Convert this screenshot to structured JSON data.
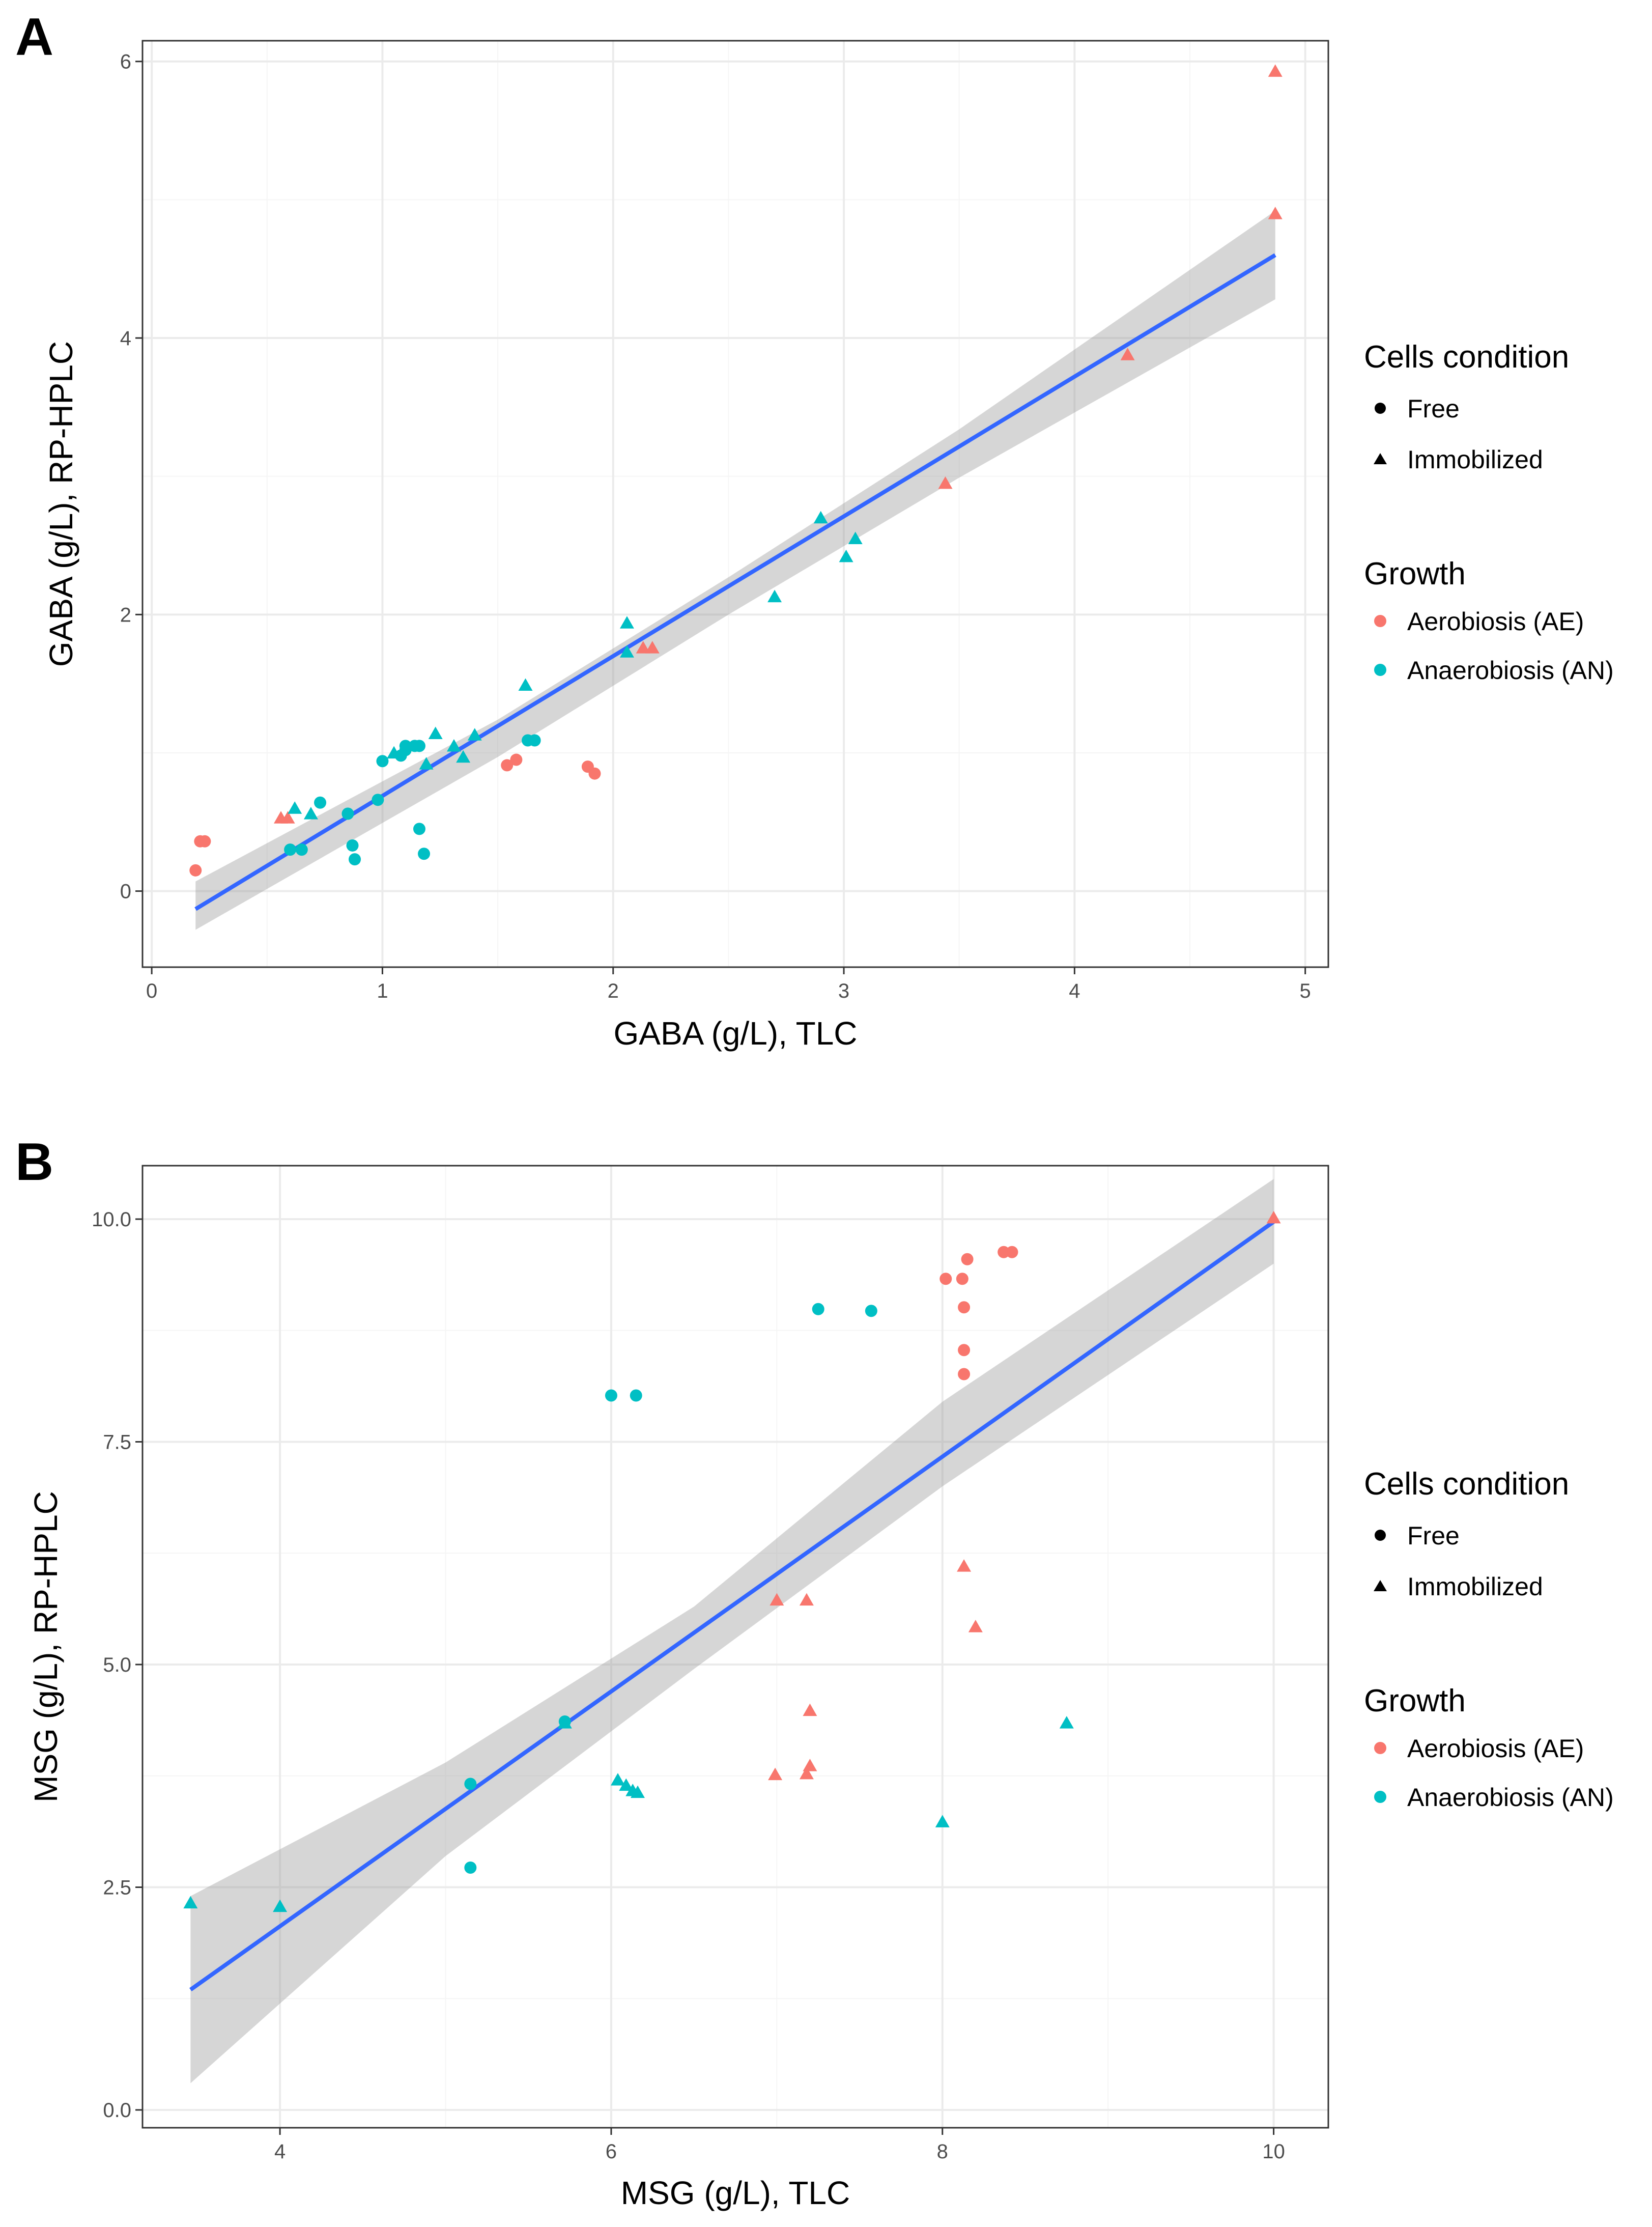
{
  "colors": {
    "aerobiosis": "#F8766D",
    "anaerobiosis": "#00BFC4",
    "fit_line": "#3366FF",
    "ribbon": "#999999",
    "grid_major": "#EBEBEB",
    "grid_minor": "#F5F5F5",
    "frame": "#333333"
  },
  "legend": {
    "shape_title": "Cells condition",
    "shape_items": [
      {
        "label": "Free",
        "shape": "circle"
      },
      {
        "label": "Immobilized",
        "shape": "triangle"
      }
    ],
    "color_title": "Growth",
    "color_items": [
      {
        "label": "Aerobiosis (AE)",
        "group": "AE"
      },
      {
        "label": "Anaerobiosis (AN)",
        "group": "AN"
      }
    ]
  },
  "chart_data": [
    {
      "panel": "A",
      "type": "scatter",
      "xlabel": "GABA (g/L), TLC",
      "ylabel": "GABA (g/L), RP-HPLC",
      "xlim": [
        -0.04,
        5.1
      ],
      "ylim": [
        -0.55,
        6.15
      ],
      "xticks": [
        0,
        1,
        2,
        3,
        4,
        5
      ],
      "yticks": [
        0,
        2,
        4,
        6
      ],
      "xtick_labels": [
        "0",
        "1",
        "2",
        "3",
        "4",
        "5"
      ],
      "ytick_labels": [
        "0",
        "2",
        "4",
        "6"
      ],
      "fit": {
        "x": [
          0.19,
          4.87
        ],
        "y": [
          -0.13,
          4.6
        ]
      },
      "ribbon": {
        "x": [
          0.19,
          1.5,
          2.5,
          3.5,
          4.87
        ],
        "upper": [
          0.07,
          1.24,
          2.27,
          3.34,
          4.92
        ],
        "lower": [
          -0.28,
          0.97,
          2.0,
          2.99,
          4.28
        ]
      },
      "points": [
        {
          "x": 0.19,
          "y": 0.15,
          "group": "AE",
          "shape": "circle"
        },
        {
          "x": 0.21,
          "y": 0.36,
          "group": "AE",
          "shape": "circle"
        },
        {
          "x": 0.23,
          "y": 0.36,
          "group": "AE",
          "shape": "circle"
        },
        {
          "x": 1.54,
          "y": 0.91,
          "group": "AE",
          "shape": "circle"
        },
        {
          "x": 1.58,
          "y": 0.95,
          "group": "AE",
          "shape": "circle"
        },
        {
          "x": 1.89,
          "y": 0.9,
          "group": "AE",
          "shape": "circle"
        },
        {
          "x": 1.92,
          "y": 0.85,
          "group": "AE",
          "shape": "circle"
        },
        {
          "x": 0.56,
          "y": 0.52,
          "group": "AE",
          "shape": "triangle"
        },
        {
          "x": 0.59,
          "y": 0.52,
          "group": "AE",
          "shape": "triangle"
        },
        {
          "x": 2.13,
          "y": 1.75,
          "group": "AE",
          "shape": "triangle"
        },
        {
          "x": 2.17,
          "y": 1.75,
          "group": "AE",
          "shape": "triangle"
        },
        {
          "x": 3.44,
          "y": 2.94,
          "group": "AE",
          "shape": "triangle"
        },
        {
          "x": 4.23,
          "y": 3.87,
          "group": "AE",
          "shape": "triangle"
        },
        {
          "x": 4.87,
          "y": 4.89,
          "group": "AE",
          "shape": "triangle"
        },
        {
          "x": 4.87,
          "y": 5.92,
          "group": "AE",
          "shape": "triangle"
        },
        {
          "x": 0.6,
          "y": 0.3,
          "group": "AN",
          "shape": "circle"
        },
        {
          "x": 0.65,
          "y": 0.3,
          "group": "AN",
          "shape": "circle"
        },
        {
          "x": 0.73,
          "y": 0.64,
          "group": "AN",
          "shape": "circle"
        },
        {
          "x": 0.85,
          "y": 0.56,
          "group": "AN",
          "shape": "circle"
        },
        {
          "x": 0.87,
          "y": 0.33,
          "group": "AN",
          "shape": "circle"
        },
        {
          "x": 0.88,
          "y": 0.23,
          "group": "AN",
          "shape": "circle"
        },
        {
          "x": 0.98,
          "y": 0.66,
          "group": "AN",
          "shape": "circle"
        },
        {
          "x": 1.0,
          "y": 0.94,
          "group": "AN",
          "shape": "circle"
        },
        {
          "x": 1.08,
          "y": 0.98,
          "group": "AN",
          "shape": "circle"
        },
        {
          "x": 1.1,
          "y": 1.02,
          "group": "AN",
          "shape": "circle"
        },
        {
          "x": 1.1,
          "y": 1.05,
          "group": "AN",
          "shape": "circle"
        },
        {
          "x": 1.14,
          "y": 1.05,
          "group": "AN",
          "shape": "circle"
        },
        {
          "x": 1.16,
          "y": 1.05,
          "group": "AN",
          "shape": "circle"
        },
        {
          "x": 1.16,
          "y": 0.45,
          "group": "AN",
          "shape": "circle"
        },
        {
          "x": 1.18,
          "y": 0.27,
          "group": "AN",
          "shape": "circle"
        },
        {
          "x": 1.63,
          "y": 1.09,
          "group": "AN",
          "shape": "circle"
        },
        {
          "x": 1.66,
          "y": 1.09,
          "group": "AN",
          "shape": "circle"
        },
        {
          "x": 0.62,
          "y": 0.59,
          "group": "AN",
          "shape": "triangle"
        },
        {
          "x": 0.69,
          "y": 0.55,
          "group": "AN",
          "shape": "triangle"
        },
        {
          "x": 1.05,
          "y": 0.99,
          "group": "AN",
          "shape": "triangle"
        },
        {
          "x": 1.19,
          "y": 0.91,
          "group": "AN",
          "shape": "triangle"
        },
        {
          "x": 1.23,
          "y": 1.13,
          "group": "AN",
          "shape": "triangle"
        },
        {
          "x": 1.31,
          "y": 1.04,
          "group": "AN",
          "shape": "triangle"
        },
        {
          "x": 1.35,
          "y": 0.96,
          "group": "AN",
          "shape": "triangle"
        },
        {
          "x": 1.4,
          "y": 1.12,
          "group": "AN",
          "shape": "triangle"
        },
        {
          "x": 1.62,
          "y": 1.48,
          "group": "AN",
          "shape": "triangle"
        },
        {
          "x": 2.06,
          "y": 1.93,
          "group": "AN",
          "shape": "triangle"
        },
        {
          "x": 2.06,
          "y": 1.72,
          "group": "AN",
          "shape": "triangle"
        },
        {
          "x": 2.7,
          "y": 2.12,
          "group": "AN",
          "shape": "triangle"
        },
        {
          "x": 2.9,
          "y": 2.69,
          "group": "AN",
          "shape": "triangle"
        },
        {
          "x": 3.01,
          "y": 2.41,
          "group": "AN",
          "shape": "triangle"
        },
        {
          "x": 3.05,
          "y": 2.54,
          "group": "AN",
          "shape": "triangle"
        }
      ]
    },
    {
      "panel": "B",
      "type": "scatter",
      "xlabel": "MSG (g/L), TLC",
      "ylabel": "MSG (g/L), RP-HPLC",
      "xlim": [
        3.17,
        10.33
      ],
      "ylim": [
        -0.2,
        10.6
      ],
      "xticks": [
        4,
        6,
        8,
        10
      ],
      "yticks": [
        0,
        2.5,
        5,
        7.5,
        10
      ],
      "xtick_labels": [
        "4",
        "6",
        "8",
        "10"
      ],
      "ytick_labels": [
        "0.0",
        "2.5",
        "5.0",
        "7.5",
        "10.0"
      ],
      "fit": {
        "x": [
          3.46,
          10.0
        ],
        "y": [
          1.35,
          9.97
        ]
      },
      "ribbon": {
        "x": [
          3.46,
          5.0,
          6.5,
          8.0,
          10.0
        ],
        "upper": [
          2.4,
          3.9,
          5.65,
          7.95,
          10.45
        ],
        "lower": [
          0.3,
          2.85,
          4.95,
          7.0,
          9.5
        ]
      },
      "points": [
        {
          "x": 8.02,
          "y": 9.33,
          "group": "AE",
          "shape": "circle"
        },
        {
          "x": 8.12,
          "y": 9.33,
          "group": "AE",
          "shape": "circle"
        },
        {
          "x": 8.15,
          "y": 9.55,
          "group": "AE",
          "shape": "circle"
        },
        {
          "x": 8.37,
          "y": 9.63,
          "group": "AE",
          "shape": "circle"
        },
        {
          "x": 8.42,
          "y": 9.63,
          "group": "AE",
          "shape": "circle"
        },
        {
          "x": 8.13,
          "y": 9.01,
          "group": "AE",
          "shape": "circle"
        },
        {
          "x": 8.13,
          "y": 8.53,
          "group": "AE",
          "shape": "circle"
        },
        {
          "x": 8.13,
          "y": 8.26,
          "group": "AE",
          "shape": "circle"
        },
        {
          "x": 7.0,
          "y": 5.71,
          "group": "AE",
          "shape": "triangle"
        },
        {
          "x": 7.18,
          "y": 5.71,
          "group": "AE",
          "shape": "triangle"
        },
        {
          "x": 8.13,
          "y": 6.09,
          "group": "AE",
          "shape": "triangle"
        },
        {
          "x": 8.2,
          "y": 5.41,
          "group": "AE",
          "shape": "triangle"
        },
        {
          "x": 7.2,
          "y": 4.47,
          "group": "AE",
          "shape": "triangle"
        },
        {
          "x": 6.99,
          "y": 3.75,
          "group": "AE",
          "shape": "triangle"
        },
        {
          "x": 7.18,
          "y": 3.76,
          "group": "AE",
          "shape": "triangle"
        },
        {
          "x": 7.2,
          "y": 3.85,
          "group": "AE",
          "shape": "triangle"
        },
        {
          "x": 10.0,
          "y": 10.0,
          "group": "AE",
          "shape": "triangle"
        },
        {
          "x": 7.25,
          "y": 8.99,
          "group": "AN",
          "shape": "circle"
        },
        {
          "x": 7.57,
          "y": 8.97,
          "group": "AN",
          "shape": "circle"
        },
        {
          "x": 6.0,
          "y": 8.02,
          "group": "AN",
          "shape": "circle"
        },
        {
          "x": 6.15,
          "y": 8.02,
          "group": "AN",
          "shape": "circle"
        },
        {
          "x": 5.15,
          "y": 3.66,
          "group": "AN",
          "shape": "circle"
        },
        {
          "x": 5.15,
          "y": 2.72,
          "group": "AN",
          "shape": "circle"
        },
        {
          "x": 5.72,
          "y": 4.36,
          "group": "AN",
          "shape": "circle"
        },
        {
          "x": 3.46,
          "y": 2.31,
          "group": "AN",
          "shape": "triangle"
        },
        {
          "x": 4.0,
          "y": 2.27,
          "group": "AN",
          "shape": "triangle"
        },
        {
          "x": 5.72,
          "y": 4.33,
          "group": "AN",
          "shape": "triangle"
        },
        {
          "x": 6.04,
          "y": 3.69,
          "group": "AN",
          "shape": "triangle"
        },
        {
          "x": 6.09,
          "y": 3.63,
          "group": "AN",
          "shape": "triangle"
        },
        {
          "x": 6.13,
          "y": 3.57,
          "group": "AN",
          "shape": "triangle"
        },
        {
          "x": 6.16,
          "y": 3.55,
          "group": "AN",
          "shape": "triangle"
        },
        {
          "x": 8.0,
          "y": 3.22,
          "group": "AN",
          "shape": "triangle"
        },
        {
          "x": 8.75,
          "y": 4.33,
          "group": "AN",
          "shape": "triangle"
        }
      ]
    }
  ]
}
